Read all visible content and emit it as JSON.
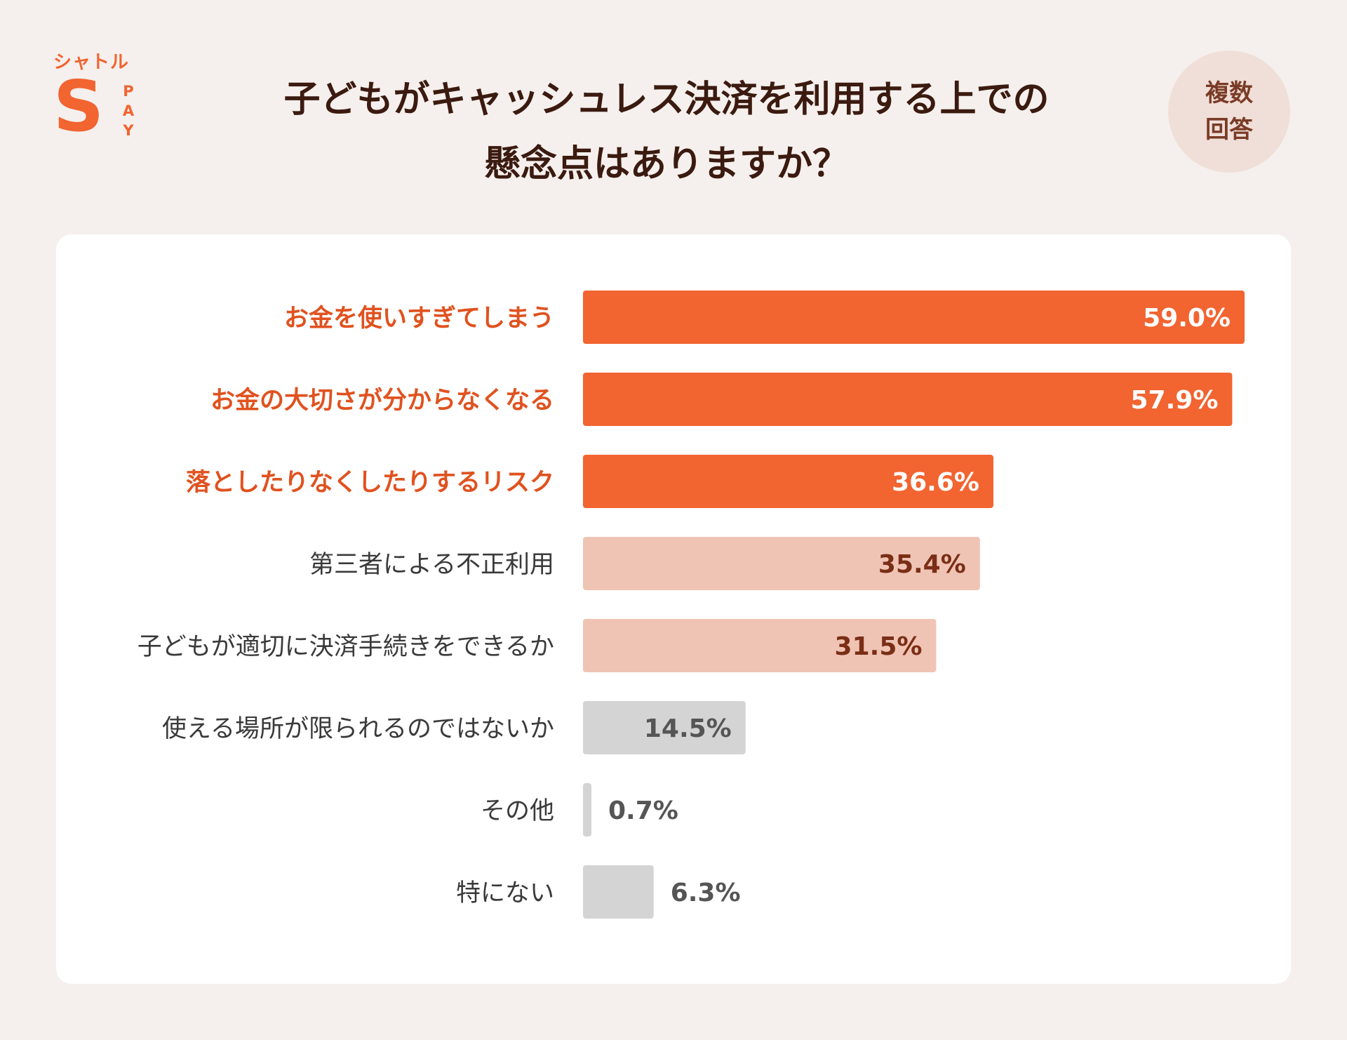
{
  "logo": {
    "text": "シャトル",
    "letter": "S",
    "pay": [
      "P",
      "A",
      "Y"
    ]
  },
  "title": {
    "line1": "子どもがキャッシュレス決済を利用する上での",
    "line2": "懸念点はありますか？"
  },
  "badge": {
    "line1": "複数",
    "line2": "回答"
  },
  "colors": {
    "primary": "#f26430",
    "secondary": "#f0c4b4",
    "neutral": "#d4d4d4",
    "primary_label": "#e0521f",
    "dark_text": "#3a3a3a",
    "secondary_value": "#7a2e16",
    "neutral_value": "#555555"
  },
  "chart_data": {
    "type": "bar",
    "orientation": "horizontal",
    "xlim": [
      0,
      59.0
    ],
    "grid": false,
    "legend": "none",
    "unit": "%",
    "categories": [
      "お金を使いすぎてしまう",
      "お金の大切さが分からなくなる",
      "落としたりなくしたりするリスク",
      "第三者による不正利用",
      "子どもが適切に決済手続きをできるか",
      "使える場所が限られるのではないか",
      "その他",
      "特にない"
    ],
    "values": [
      59.0,
      57.9,
      36.6,
      35.4,
      31.5,
      14.5,
      0.7,
      6.3
    ],
    "labels": [
      "59.0%",
      "57.9%",
      "36.6%",
      "35.4%",
      "31.5%",
      "14.5%",
      "0.7%",
      "6.3%"
    ],
    "tier": [
      "primary",
      "primary",
      "primary",
      "secondary",
      "secondary",
      "neutral",
      "neutral",
      "neutral"
    ]
  }
}
